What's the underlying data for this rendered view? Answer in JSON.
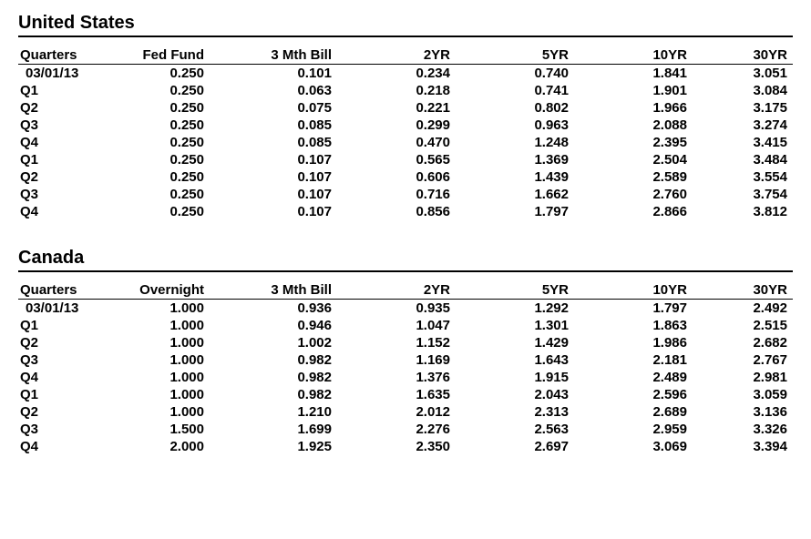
{
  "sections": [
    {
      "title": "United States",
      "columns": [
        "Quarters",
        "Fed Fund",
        "3 Mth Bill",
        "2YR",
        "5YR",
        "10YR",
        "30YR"
      ],
      "rows": [
        [
          "03/01/13",
          "0.250",
          "0.101",
          "0.234",
          "0.740",
          "1.841",
          "3.051"
        ],
        [
          "Q1",
          "0.250",
          "0.063",
          "0.218",
          "0.741",
          "1.901",
          "3.084"
        ],
        [
          "Q2",
          "0.250",
          "0.075",
          "0.221",
          "0.802",
          "1.966",
          "3.175"
        ],
        [
          "Q3",
          "0.250",
          "0.085",
          "0.299",
          "0.963",
          "2.088",
          "3.274"
        ],
        [
          "Q4",
          "0.250",
          "0.085",
          "0.470",
          "1.248",
          "2.395",
          "3.415"
        ],
        [
          "Q1",
          "0.250",
          "0.107",
          "0.565",
          "1.369",
          "2.504",
          "3.484"
        ],
        [
          "Q2",
          "0.250",
          "0.107",
          "0.606",
          "1.439",
          "2.589",
          "3.554"
        ],
        [
          "Q3",
          "0.250",
          "0.107",
          "0.716",
          "1.662",
          "2.760",
          "3.754"
        ],
        [
          "Q4",
          "0.250",
          "0.107",
          "0.856",
          "1.797",
          "2.866",
          "3.812"
        ]
      ]
    },
    {
      "title": "Canada",
      "columns": [
        "Quarters",
        "Overnight",
        "3 Mth Bill",
        "2YR",
        "5YR",
        "10YR",
        "30YR"
      ],
      "rows": [
        [
          "03/01/13",
          "1.000",
          "0.936",
          "0.935",
          "1.292",
          "1.797",
          "2.492"
        ],
        [
          "Q1",
          "1.000",
          "0.946",
          "1.047",
          "1.301",
          "1.863",
          "2.515"
        ],
        [
          "Q2",
          "1.000",
          "1.002",
          "1.152",
          "1.429",
          "1.986",
          "2.682"
        ],
        [
          "Q3",
          "1.000",
          "0.982",
          "1.169",
          "1.643",
          "2.181",
          "2.767"
        ],
        [
          "Q4",
          "1.000",
          "0.982",
          "1.376",
          "1.915",
          "2.489",
          "2.981"
        ],
        [
          "Q1",
          "1.000",
          "0.982",
          "1.635",
          "2.043",
          "2.596",
          "3.059"
        ],
        [
          "Q2",
          "1.000",
          "1.210",
          "2.012",
          "2.313",
          "2.689",
          "3.136"
        ],
        [
          "Q3",
          "1.500",
          "1.699",
          "2.276",
          "2.563",
          "2.959",
          "3.326"
        ],
        [
          "Q4",
          "2.000",
          "1.925",
          "2.350",
          "2.697",
          "3.069",
          "3.394"
        ]
      ]
    }
  ],
  "style": {
    "text_color": "#000000",
    "background_color": "#ffffff",
    "font_family": "Arial",
    "title_fontsize": 20,
    "body_fontsize": 15,
    "title_underline_width": 2,
    "header_underline_width": 1
  }
}
